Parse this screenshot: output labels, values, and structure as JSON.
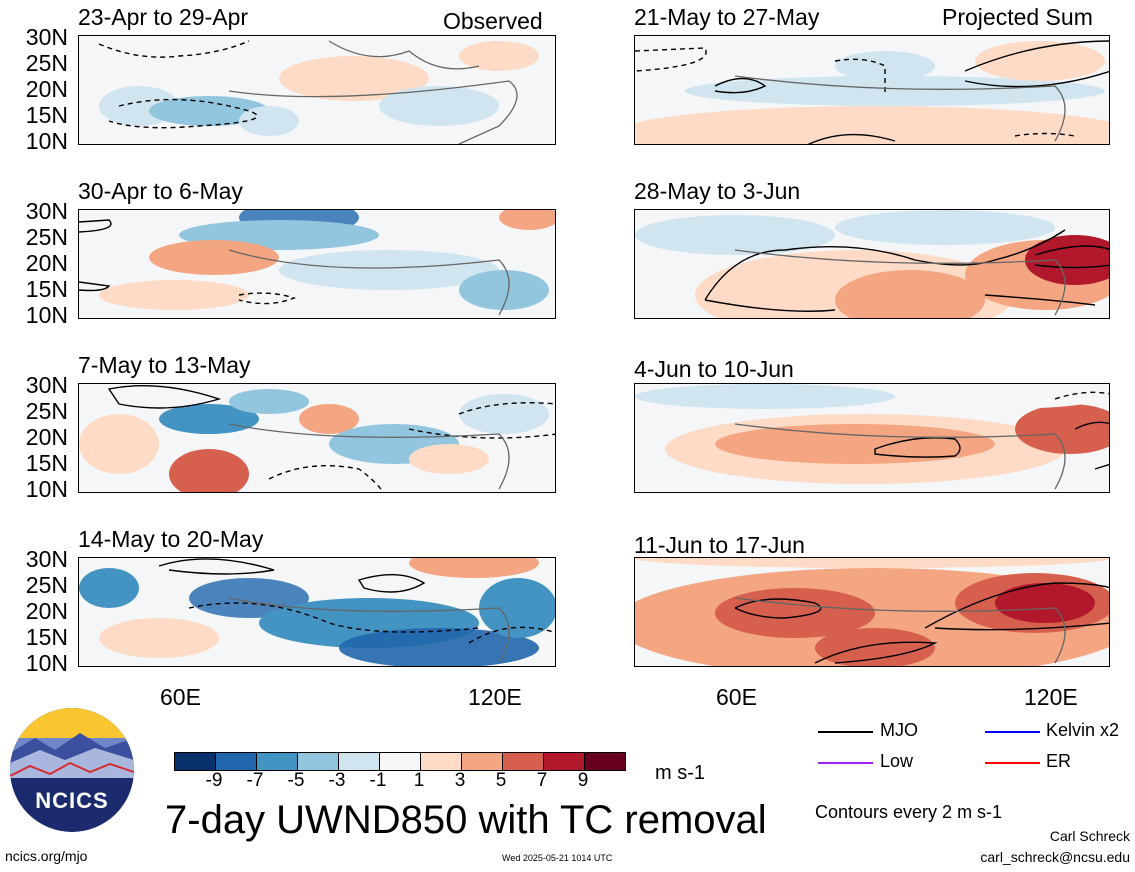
{
  "observed_label": "Observed",
  "projected_label": "Projected Sum",
  "lat_labels": [
    "30N",
    "25N",
    "20N",
    "15N",
    "10N"
  ],
  "lon_labels": [
    "60E",
    "120E"
  ],
  "panels": [
    {
      "title": "23-Apr to 29-Apr"
    },
    {
      "title": "30-Apr to 6-May"
    },
    {
      "title": "7-May to 13-May"
    },
    {
      "title": "14-May to 20-May"
    },
    {
      "title": "21-May to 27-May"
    },
    {
      "title": "28-May to 3-Jun"
    },
    {
      "title": "4-Jun to 10-Jun"
    },
    {
      "title": "11-Jun to 17-Jun"
    }
  ],
  "colorbar": {
    "colors": [
      "#08306b",
      "#2166ac",
      "#4393c3",
      "#92c5de",
      "#d1e5f0",
      "#f7f7f7",
      "#fddbc7",
      "#f4a582",
      "#d6604d",
      "#b2182b",
      "#67001f"
    ],
    "ticks": [
      "-9",
      "-7",
      "-5",
      "-3",
      "-1",
      "1",
      "3",
      "5",
      "7",
      "9"
    ],
    "units": "m s-1"
  },
  "legend": {
    "items": [
      {
        "label": "MJO",
        "color": "#000000"
      },
      {
        "label": "Kelvin x2",
        "color": "#0000ff"
      },
      {
        "label": "Low",
        "color": "#a020f0"
      },
      {
        "label": "ER",
        "color": "#ff0000"
      }
    ],
    "contours_note": "Contours every 2 m s-1"
  },
  "main_title": "7-day UWND850 with TC removal",
  "logo_text": "NCICS",
  "footer": {
    "url": "ncics.org/mjo",
    "timestamp": "Wed 2025-05-21 1014 UTC",
    "author": "Carl Schreck",
    "email": "carl_schreck@ncsu.edu"
  }
}
